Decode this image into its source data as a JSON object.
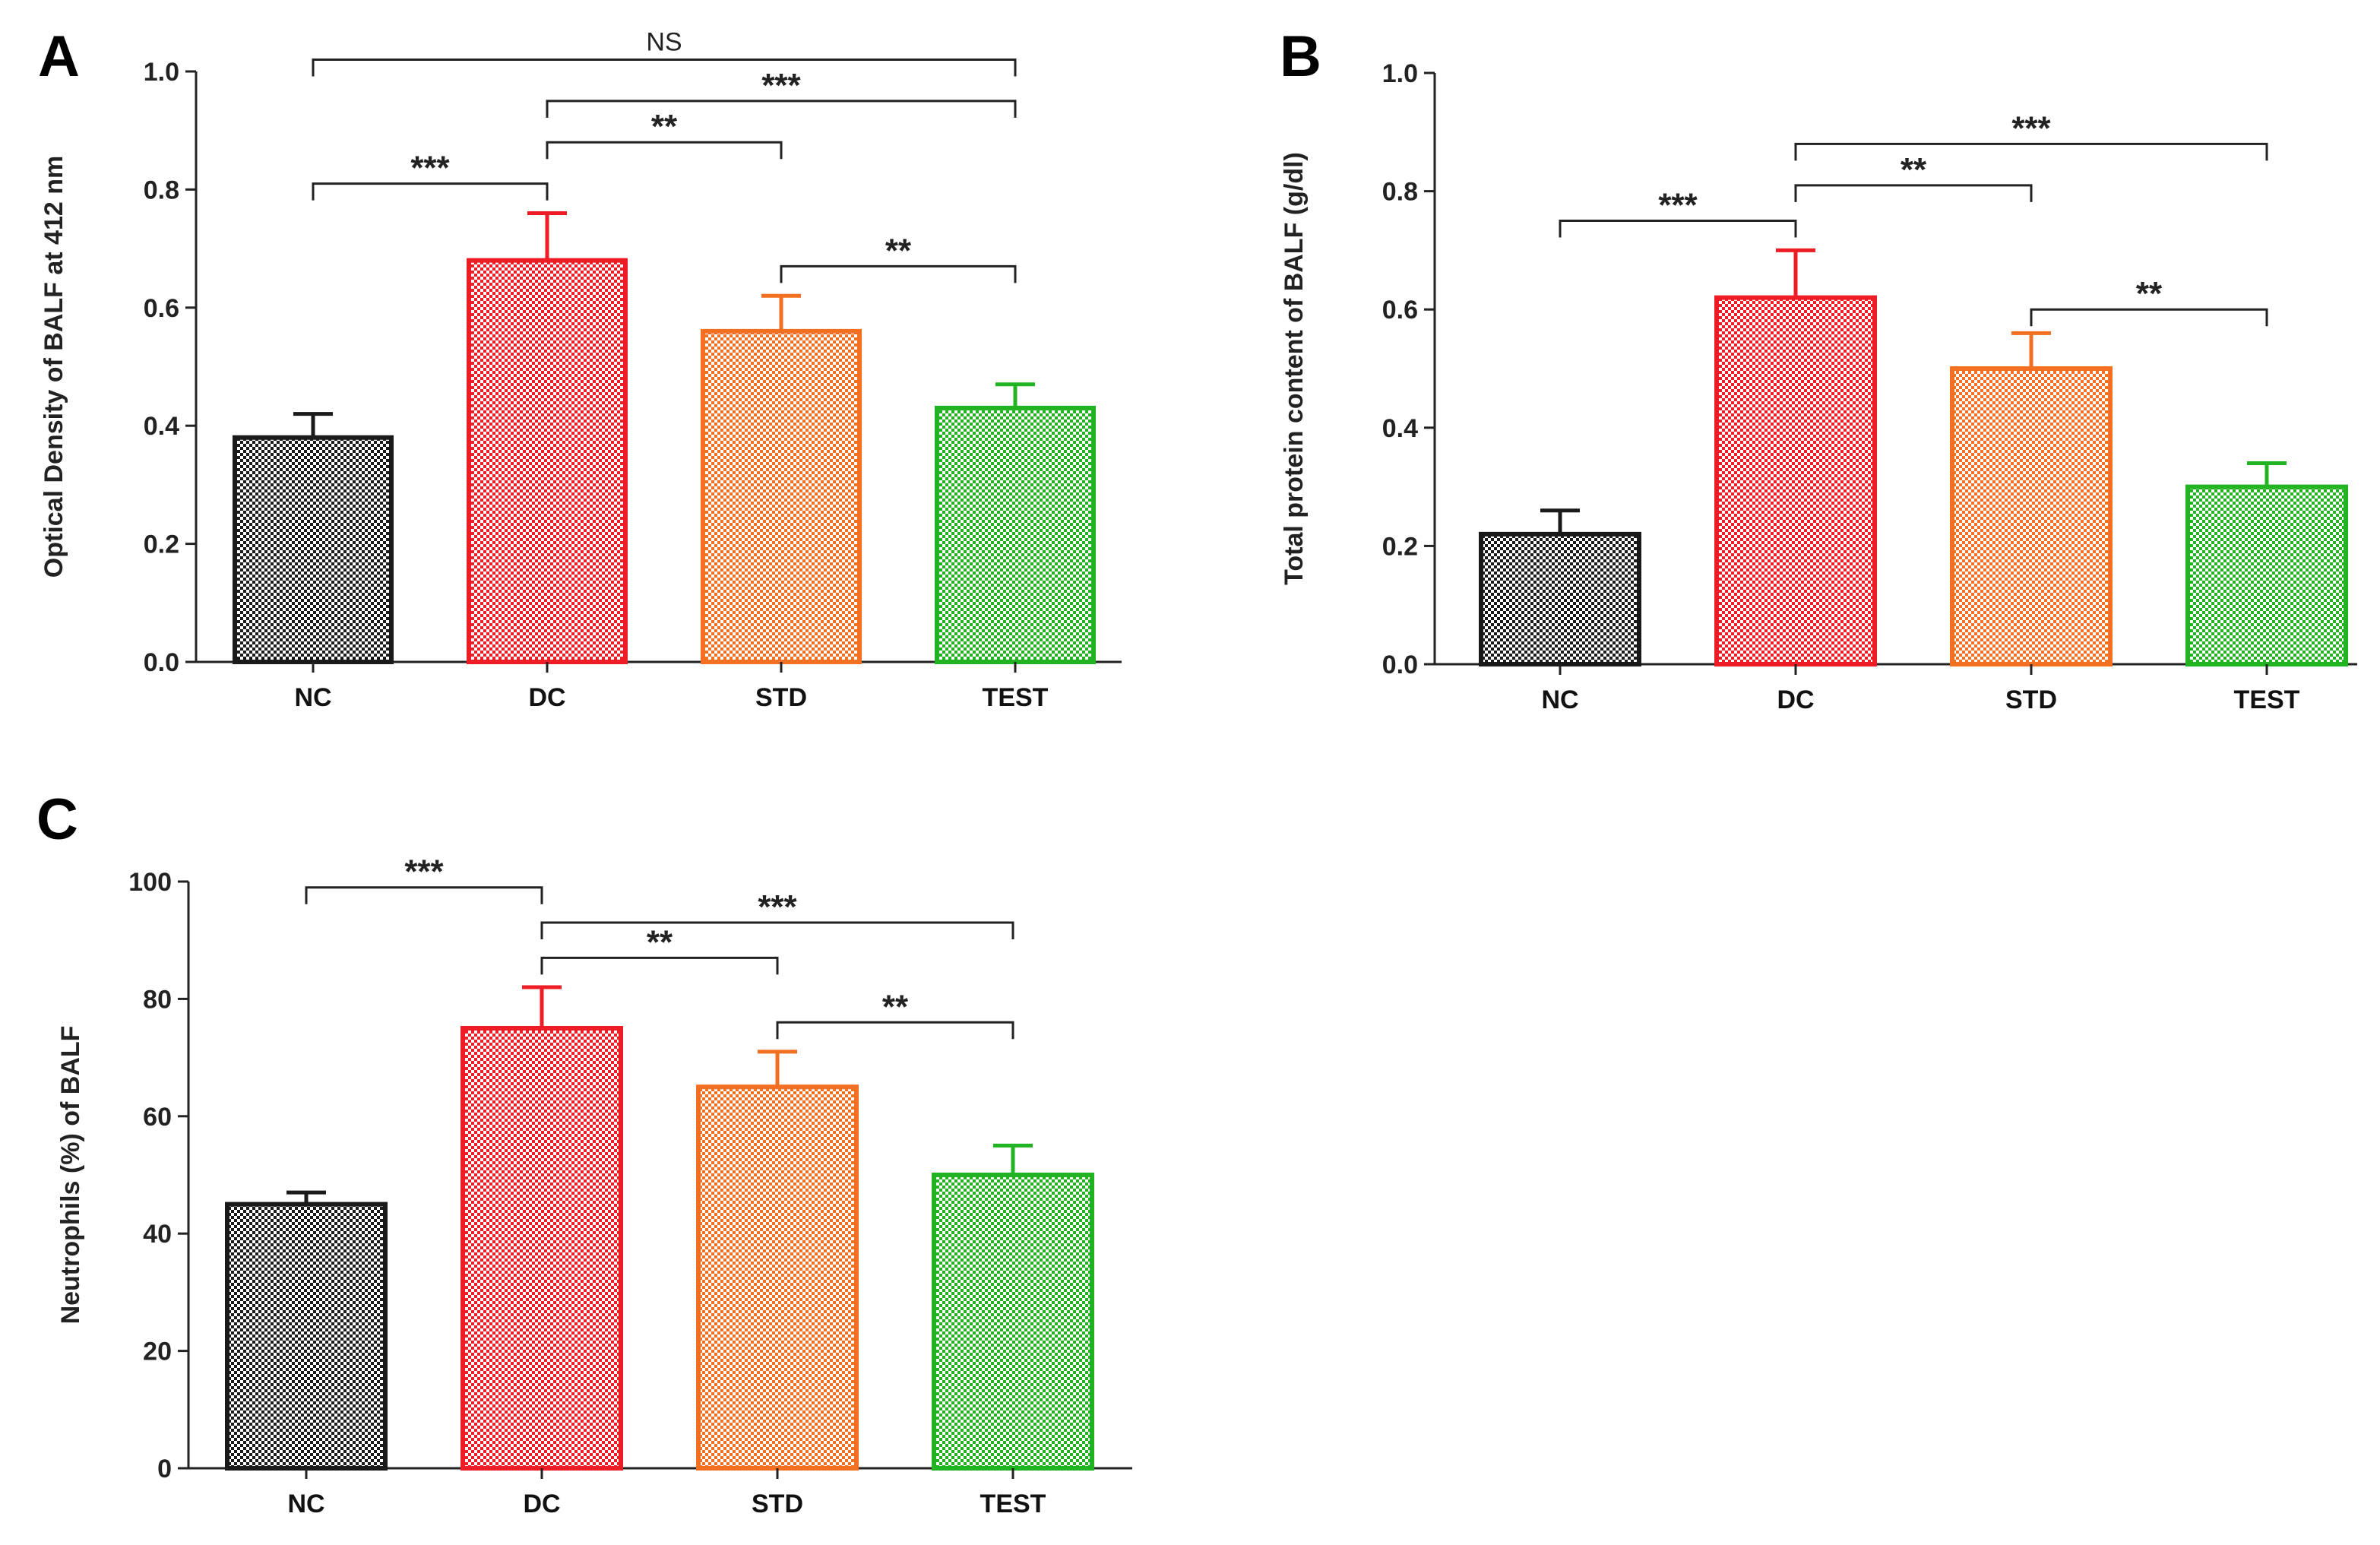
{
  "colors": {
    "NC": "#1a1a1a",
    "DC": "#ee1c25",
    "STD": "#f36f21",
    "TEST": "#22b322",
    "axis": "#222222"
  },
  "chart_data": [
    {
      "panel": "A",
      "type": "bar",
      "categories": [
        "NC",
        "DC",
        "STD",
        "TEST"
      ],
      "values": [
        0.38,
        0.68,
        0.56,
        0.43
      ],
      "errors": [
        0.04,
        0.08,
        0.06,
        0.04
      ],
      "ylabel": "Optical Density of BALF at 412 nm",
      "xlabel": "",
      "ylim": [
        0.0,
        1.0
      ],
      "yticks": [
        "0.0",
        "0.2",
        "0.4",
        "0.6",
        "0.8",
        "1.0"
      ],
      "annotations": [
        {
          "from": 0,
          "to": 1,
          "label": "***",
          "y": 0.81
        },
        {
          "from": 1,
          "to": 2,
          "label": "**",
          "y": 0.88
        },
        {
          "from": 1,
          "to": 3,
          "label": "***",
          "y": 0.95
        },
        {
          "from": 2,
          "to": 3,
          "label": "**",
          "y": 0.67
        },
        {
          "from": 0,
          "to": 3,
          "label": "NS",
          "y": 1.02
        }
      ]
    },
    {
      "panel": "B",
      "type": "bar",
      "categories": [
        "NC",
        "DC",
        "STD",
        "TEST"
      ],
      "values": [
        0.22,
        0.62,
        0.5,
        0.3
      ],
      "errors": [
        0.04,
        0.08,
        0.06,
        0.04
      ],
      "ylabel": "Total protein content of BALF (g/dl)",
      "xlabel": "",
      "ylim": [
        0.0,
        1.0
      ],
      "yticks": [
        "0.0",
        "0.2",
        "0.4",
        "0.6",
        "0.8",
        "1.0"
      ],
      "annotations": [
        {
          "from": 0,
          "to": 1,
          "label": "***",
          "y": 0.75
        },
        {
          "from": 1,
          "to": 2,
          "label": "**",
          "y": 0.81
        },
        {
          "from": 1,
          "to": 3,
          "label": "***",
          "y": 0.88
        },
        {
          "from": 2,
          "to": 3,
          "label": "**",
          "y": 0.6
        }
      ]
    },
    {
      "panel": "C",
      "type": "bar",
      "categories": [
        "NC",
        "DC",
        "STD",
        "TEST"
      ],
      "values": [
        45,
        75,
        65,
        50
      ],
      "errors": [
        2,
        7,
        6,
        5
      ],
      "ylabel": "Neutrophils (%) of BALF",
      "xlabel": "",
      "ylim": [
        0,
        100
      ],
      "yticks": [
        "0",
        "20",
        "40",
        "60",
        "80",
        "100"
      ],
      "annotations": [
        {
          "from": 0,
          "to": 1,
          "label": "***",
          "y": 99
        },
        {
          "from": 1,
          "to": 2,
          "label": "**",
          "y": 87
        },
        {
          "from": 1,
          "to": 3,
          "label": "***",
          "y": 93
        },
        {
          "from": 2,
          "to": 3,
          "label": "**",
          "y": 76
        }
      ]
    }
  ]
}
